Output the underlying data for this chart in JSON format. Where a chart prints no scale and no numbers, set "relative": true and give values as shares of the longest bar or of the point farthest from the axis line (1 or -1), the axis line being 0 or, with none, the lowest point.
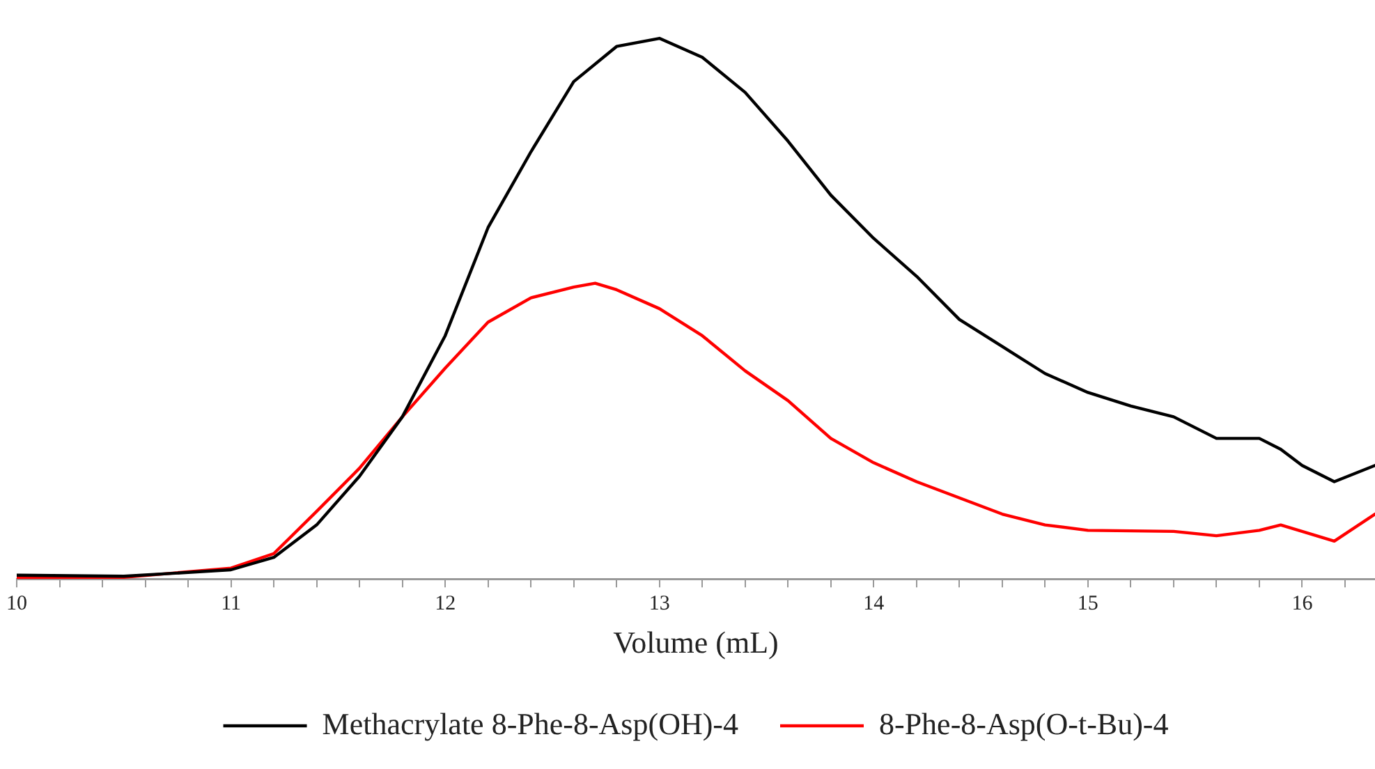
{
  "chart_data": {
    "type": "line",
    "xlabel": "Volume (mL)",
    "relative": true,
    "legend": "bottom",
    "grid": false,
    "marker": "none",
    "line_style": "solid",
    "tick_labels": "x",
    "xlim": [
      10,
      16.34
    ],
    "xticks": [
      10,
      {
        "value": 10.2,
        "label": null
      },
      {
        "value": 10.4,
        "label": null
      },
      {
        "value": 10.6,
        "label": null
      },
      {
        "value": 10.8,
        "label": null
      },
      11,
      {
        "value": 11.2,
        "label": null
      },
      {
        "value": 11.4,
        "label": null
      },
      {
        "value": 11.6,
        "label": null
      },
      {
        "value": 11.8,
        "label": null
      },
      12,
      {
        "value": 12.2,
        "label": null
      },
      {
        "value": 12.4,
        "label": null
      },
      {
        "value": 12.6,
        "label": null
      },
      {
        "value": 12.8,
        "label": null
      },
      13,
      {
        "value": 13.2,
        "label": null
      },
      {
        "value": 13.4,
        "label": null
      },
      {
        "value": 13.6,
        "label": null
      },
      {
        "value": 13.8,
        "label": null
      },
      14,
      {
        "value": 14.2,
        "label": null
      },
      {
        "value": 14.4,
        "label": null
      },
      {
        "value": 14.6,
        "label": null
      },
      {
        "value": 14.8,
        "label": null
      },
      15,
      {
        "value": 15.2,
        "label": null
      },
      {
        "value": 15.4,
        "label": null
      },
      {
        "value": 15.6,
        "label": null
      },
      {
        "value": 15.8,
        "label": null
      },
      16,
      {
        "value": 16.2,
        "label": null
      }
    ],
    "series": [
      {
        "name": "Methacrylate 8-Phe-8-Asp(OH)-4",
        "color": "#000000",
        "x": [
          10,
          10.5,
          11,
          11.2,
          11.4,
          11.6,
          11.8,
          12,
          12.2,
          12.4,
          12.6,
          12.8,
          13,
          13.2,
          13.4,
          13.6,
          13.8,
          14,
          14.2,
          14.4,
          14.6,
          14.8,
          15,
          15.2,
          15.4,
          15.6,
          15.8,
          15.9,
          16,
          16.15,
          16.34
        ],
        "values": [
          0.007,
          0.005,
          0.017,
          0.04,
          0.1,
          0.19,
          0.3,
          0.45,
          0.65,
          0.79,
          0.92,
          0.985,
          1,
          0.965,
          0.9,
          0.81,
          0.71,
          0.63,
          0.56,
          0.48,
          0.43,
          0.38,
          0.345,
          0.32,
          0.3,
          0.26,
          0.26,
          0.24,
          0.21,
          0.18,
          0.21
        ]
      },
      {
        "name": "8-Phe-8-Asp(O-t-Bu)-4",
        "color": "#ff0000",
        "x": [
          10,
          10.5,
          11,
          11.2,
          11.4,
          11.6,
          11.8,
          12,
          12.2,
          12.4,
          12.6,
          12.7,
          12.8,
          13,
          13.2,
          13.4,
          13.6,
          13.8,
          14,
          14.2,
          14.4,
          14.6,
          14.8,
          15,
          15.4,
          15.6,
          15.8,
          15.9,
          16.15,
          16.34
        ],
        "values": [
          0.002,
          0.003,
          0.02,
          0.047,
          0.125,
          0.205,
          0.3,
          0.39,
          0.475,
          0.52,
          0.54,
          0.547,
          0.535,
          0.5,
          0.45,
          0.385,
          0.33,
          0.26,
          0.215,
          0.18,
          0.15,
          0.12,
          0.1,
          0.09,
          0.088,
          0.08,
          0.09,
          0.1,
          0.07,
          0.12
        ]
      }
    ]
  }
}
